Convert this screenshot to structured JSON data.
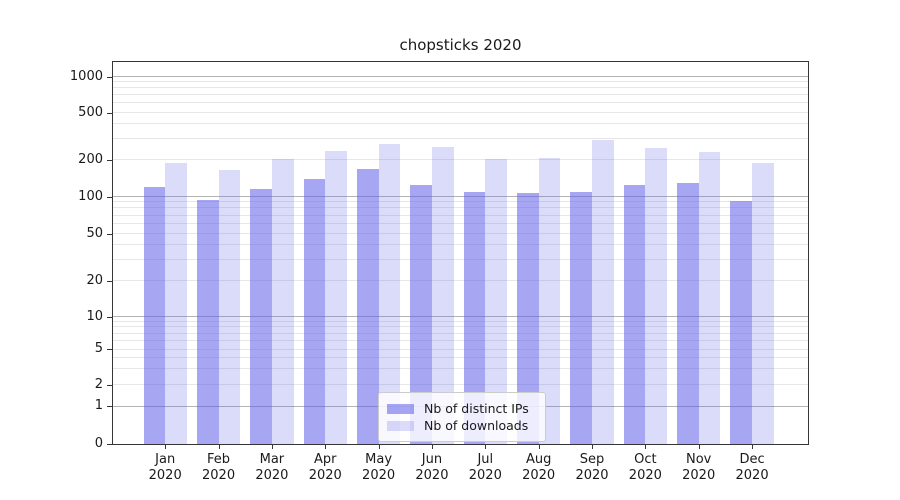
{
  "chart_data": {
    "type": "bar",
    "title": "chopsticks 2020",
    "xlabel": "",
    "ylabel": "",
    "grid": true,
    "background_color": "#ffffff",
    "legend_position": "lower center",
    "categories": [
      "Jan\n2020",
      "Feb\n2020",
      "Mar\n2020",
      "Apr\n2020",
      "May\n2020",
      "Jun\n2020",
      "Jul\n2020",
      "Aug\n2020",
      "Sep\n2020",
      "Oct\n2020",
      "Nov\n2020",
      "Dec\n2020"
    ],
    "series": [
      {
        "name": "Nb of distinct IPs",
        "color": "rgba(92,92,233,0.55)",
        "values": [
          120,
          94,
          116,
          141,
          170,
          125,
          109,
          107,
          110,
          125,
          129,
          92
        ]
      },
      {
        "name": "Nb of downloads",
        "color": "rgba(92,92,233,0.22)",
        "values": [
          191,
          166,
          205,
          241,
          274,
          260,
          205,
          210,
          294,
          252,
          236,
          192
        ]
      }
    ],
    "yscale": "symlog",
    "ylim": [
      0,
      1250
    ],
    "yticks": [
      {
        "label": "0",
        "value": 0,
        "pos": 0.0,
        "major": false
      },
      {
        "label": "1",
        "value": 1,
        "pos": 0.0982,
        "major": true
      },
      {
        "label": "2",
        "value": 2,
        "pos": 0.1545,
        "major": false
      },
      {
        "label": "5",
        "value": 5,
        "pos": 0.2474,
        "major": false
      },
      {
        "label": "10",
        "value": 10,
        "pos": 0.3332,
        "major": true
      },
      {
        "label": "20",
        "value": 20,
        "pos": 0.4277,
        "major": false
      },
      {
        "label": "50",
        "value": 50,
        "pos": 0.5505,
        "major": false
      },
      {
        "label": "100",
        "value": 100,
        "pos": 0.6479,
        "major": true
      },
      {
        "label": "200",
        "value": 200,
        "pos": 0.7424,
        "major": false
      },
      {
        "label": "500",
        "value": 500,
        "pos": 0.8675,
        "major": false
      },
      {
        "label": "1000",
        "value": 1000,
        "pos": 0.962,
        "major": true
      }
    ],
    "minor_gridline_values": [
      3,
      4,
      6,
      7,
      8,
      9,
      30,
      40,
      60,
      70,
      80,
      90,
      300,
      400,
      600,
      700,
      800,
      900
    ],
    "grid_major_color": "#b4b4b4",
    "grid_minor_color": "#e7e7e7"
  }
}
